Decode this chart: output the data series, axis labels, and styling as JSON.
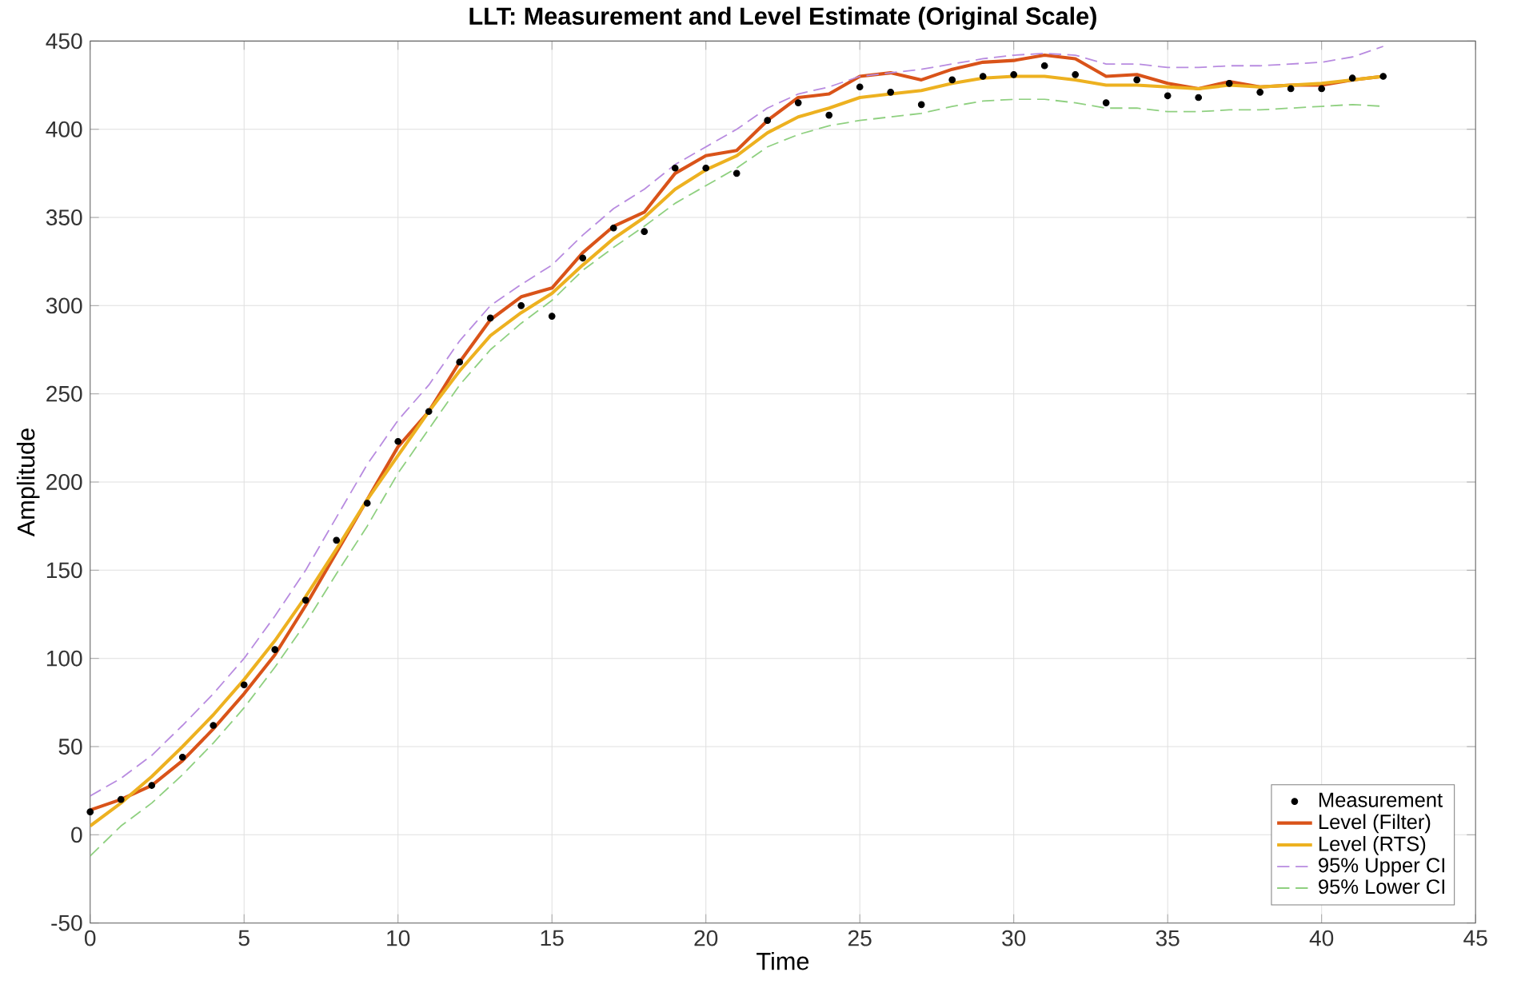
{
  "chart_data": {
    "type": "line",
    "title": "LLT: Measurement and Level Estimate (Original Scale)",
    "xlabel": "Time",
    "ylabel": "Amplitude",
    "x": [
      0,
      1,
      2,
      3,
      4,
      5,
      6,
      7,
      8,
      9,
      10,
      11,
      12,
      13,
      14,
      15,
      16,
      17,
      18,
      19,
      20,
      21,
      22,
      23,
      24,
      25,
      26,
      27,
      28,
      29,
      30,
      31,
      32,
      33,
      34,
      35,
      36,
      37,
      38,
      39,
      40,
      41,
      42
    ],
    "xlim": [
      0,
      45
    ],
    "xticks": [
      0,
      5,
      10,
      15,
      20,
      25,
      30,
      35,
      40,
      45
    ],
    "ylim": [
      -50,
      450
    ],
    "yticks": [
      -50,
      0,
      50,
      100,
      150,
      200,
      250,
      300,
      350,
      400,
      450
    ],
    "grid": true,
    "legend": "bottom right",
    "series": [
      {
        "name": "Measurement",
        "type": "scatter",
        "marker": "circle",
        "color": "#000000",
        "values": [
          13,
          20,
          28,
          44,
          62,
          85,
          105,
          133,
          167,
          188,
          223,
          240,
          268,
          293,
          300,
          294,
          327,
          344,
          342,
          378,
          378,
          375,
          405,
          415,
          408,
          424,
          421,
          414,
          428,
          430,
          431,
          436,
          431,
          415,
          428,
          419,
          418,
          426,
          421,
          423,
          423,
          429,
          430
        ]
      },
      {
        "name": "Level (Filter)",
        "color": "#d95319",
        "line_style": "solid",
        "values": [
          14,
          20,
          28,
          42,
          60,
          80,
          102,
          130,
          160,
          190,
          220,
          240,
          268,
          292,
          305,
          310,
          330,
          345,
          353,
          375,
          385,
          388,
          405,
          418,
          420,
          430,
          432,
          428,
          434,
          438,
          439,
          442,
          440,
          430,
          431,
          426,
          423,
          427,
          424,
          425,
          425,
          428,
          430
        ]
      },
      {
        "name": "Level (RTS)",
        "color": "#edb120",
        "line_style": "solid",
        "values": [
          5,
          18,
          33,
          50,
          68,
          88,
          110,
          135,
          162,
          190,
          215,
          240,
          263,
          283,
          296,
          307,
          323,
          338,
          350,
          366,
          377,
          385,
          398,
          407,
          412,
          418,
          420,
          422,
          426,
          429,
          430,
          430,
          428,
          425,
          425,
          424,
          423,
          425,
          424,
          425,
          426,
          428,
          430
        ]
      },
      {
        "name": "95% Upper CI",
        "color": "#b88be0",
        "line_style": "dashed",
        "values": [
          22,
          32,
          45,
          62,
          80,
          100,
          124,
          150,
          180,
          210,
          235,
          255,
          280,
          300,
          312,
          323,
          340,
          355,
          366,
          380,
          390,
          400,
          412,
          420,
          424,
          430,
          432,
          434,
          437,
          440,
          442,
          443,
          442,
          437,
          437,
          435,
          435,
          436,
          436,
          437,
          438,
          441,
          447
        ]
      },
      {
        "name": "95% Lower CI",
        "color": "#8fd080",
        "line_style": "dashed",
        "values": [
          -12,
          5,
          18,
          34,
          52,
          72,
          95,
          120,
          148,
          175,
          205,
          230,
          255,
          275,
          290,
          303,
          320,
          333,
          345,
          358,
          368,
          378,
          390,
          397,
          402,
          405,
          407,
          409,
          413,
          416,
          417,
          417,
          415,
          412,
          412,
          410,
          410,
          411,
          411,
          412,
          413,
          414,
          413
        ]
      }
    ]
  }
}
